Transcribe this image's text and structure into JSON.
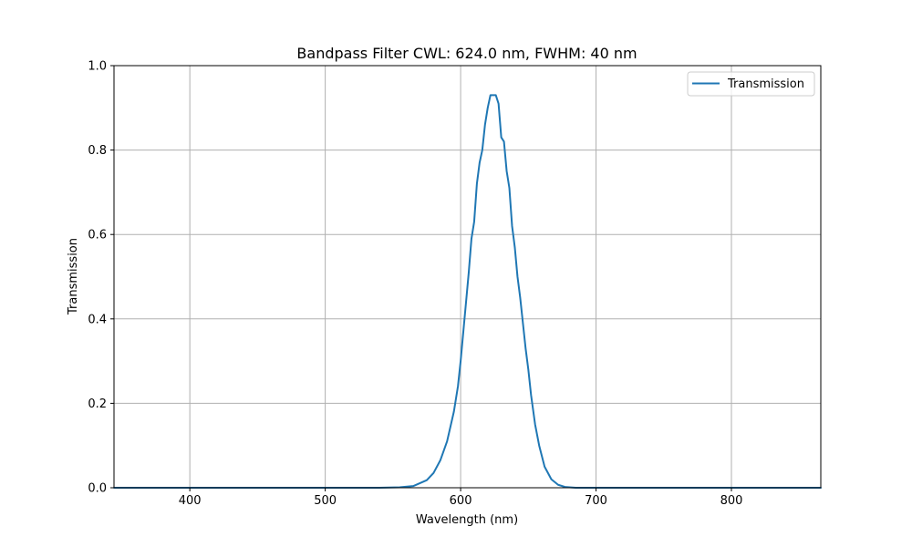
{
  "chart_data": {
    "type": "line",
    "title": "Bandpass Filter CWL: 624.0 nm, FWHM: 40 nm",
    "xlabel": "Wavelength (nm)",
    "ylabel": "Transmission",
    "xlim": [
      344,
      866
    ],
    "ylim": [
      0.0,
      1.0
    ],
    "xticks": [
      400,
      500,
      600,
      700,
      800
    ],
    "yticks": [
      0.0,
      0.2,
      0.4,
      0.6,
      0.8,
      1.0
    ],
    "xtick_labels": [
      "400",
      "500",
      "600",
      "700",
      "800"
    ],
    "ytick_labels": [
      "0.0",
      "0.2",
      "0.4",
      "0.6",
      "0.8",
      "1.0"
    ],
    "grid": true,
    "legend_position": "top-right",
    "series": [
      {
        "name": "Transmission",
        "color": "#1f77b4",
        "x": [
          344,
          400,
          450,
          500,
          540,
          555,
          565,
          575,
          580,
          585,
          590,
          595,
          598,
          600,
          602,
          604,
          606,
          608,
          610,
          612,
          614,
          616,
          618,
          620,
          622,
          624,
          626,
          628,
          630,
          632,
          634,
          636,
          638,
          640,
          642,
          644,
          646,
          648,
          650,
          652,
          655,
          658,
          662,
          667,
          672,
          677,
          685,
          695,
          720,
          800,
          866
        ],
        "y": [
          0.0,
          0.0,
          0.0,
          0.0,
          0.0,
          0.001,
          0.004,
          0.018,
          0.035,
          0.065,
          0.11,
          0.18,
          0.24,
          0.3,
          0.37,
          0.44,
          0.51,
          0.59,
          0.63,
          0.72,
          0.77,
          0.8,
          0.86,
          0.9,
          0.93,
          0.93,
          0.93,
          0.91,
          0.83,
          0.82,
          0.75,
          0.71,
          0.62,
          0.57,
          0.5,
          0.45,
          0.39,
          0.33,
          0.28,
          0.22,
          0.15,
          0.1,
          0.05,
          0.02,
          0.007,
          0.002,
          0.0,
          0.0,
          0.0,
          0.0,
          0.0
        ]
      }
    ]
  }
}
